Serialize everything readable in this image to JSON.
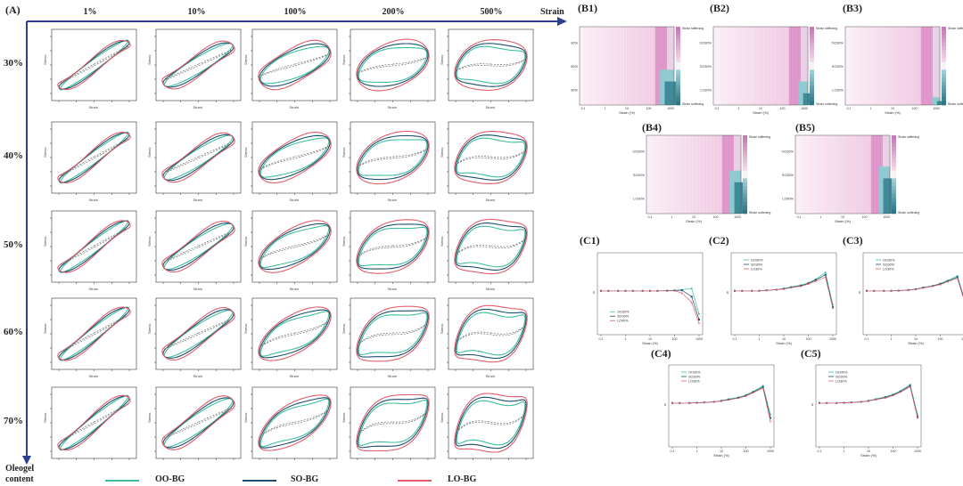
{
  "panelA": {
    "label": "(A)",
    "columns": [
      "1%",
      "10%",
      "100%",
      "200%",
      "500%"
    ],
    "rows": [
      "30%",
      "40%",
      "50%",
      "60%",
      "70%"
    ],
    "x_axis_arrow_label": "Strain",
    "y_axis_arrow_label_line1": "Oleogel",
    "y_axis_arrow_label_line2": "content",
    "subplot_xlabel": "Strain",
    "subplot_ylabel": "Stress",
    "legend": [
      {
        "name": "OO-BG",
        "color": "#3dbf9f"
      },
      {
        "name": "SO-BG",
        "color": "#1f4e6b"
      },
      {
        "name": "LO-BG",
        "color": "#e35d6a"
      }
    ]
  },
  "panelB": {
    "labels": [
      "(B1)",
      "(B2)",
      "(B3)",
      "(B4)",
      "(B5)"
    ],
    "row_labels": [
      "OO30%",
      "SO30%",
      "LO30%"
    ],
    "xlabel": "Strain (%)",
    "colorbar_top": "Strain stiffening",
    "colorbar_bottom": "Strain softening",
    "ticks": [
      "0.1",
      "1",
      "10",
      "100",
      "1000"
    ]
  },
  "panelC": {
    "labels": [
      "(C1)",
      "(C2)",
      "(C3)",
      "(C4)",
      "(C5)"
    ],
    "xlabel": "Strain (%)",
    "ylabel": "S",
    "legend": [
      "OO30%",
      "SO30%",
      "LO30%"
    ],
    "ticks": [
      "0.1",
      "1",
      "10",
      "100",
      "1000"
    ]
  },
  "chart_data": [
    {
      "type": "line",
      "title": "(C1)",
      "xlabel": "Strain (%)",
      "ylabel": "S",
      "x": [
        0.1,
        0.2,
        0.5,
        1,
        2,
        5,
        10,
        20,
        50,
        100,
        200,
        500,
        1000
      ],
      "series": [
        {
          "name": "OO30%",
          "values": [
            0,
            0,
            0,
            0,
            0,
            0,
            0,
            0,
            0.02,
            0.05,
            0.1,
            0.2,
            -2.0
          ]
        },
        {
          "name": "SO30%",
          "values": [
            0,
            0,
            0,
            0,
            0,
            0,
            0,
            0,
            0.01,
            0.03,
            0.05,
            -0.5,
            -2.5
          ]
        },
        {
          "name": "LO30%",
          "values": [
            0,
            0,
            0,
            0,
            0,
            0,
            0,
            0,
            0.0,
            0.02,
            -0.2,
            -1.0,
            -2.8
          ]
        }
      ]
    },
    {
      "type": "line",
      "title": "(C2)",
      "xlabel": "Strain (%)",
      "ylabel": "S",
      "x": [
        0.1,
        0.2,
        0.5,
        1,
        2,
        5,
        10,
        20,
        50,
        100,
        200,
        500,
        1000
      ],
      "series": [
        {
          "name": "OO30%",
          "values": [
            0,
            0,
            0,
            0,
            0.05,
            0.1,
            0.2,
            0.35,
            0.5,
            0.7,
            1.0,
            1.6,
            -1.2
          ]
        },
        {
          "name": "SO30%",
          "values": [
            0,
            0,
            0,
            0,
            0.05,
            0.1,
            0.18,
            0.3,
            0.45,
            0.65,
            0.95,
            1.4,
            -1.4
          ]
        },
        {
          "name": "LO30%",
          "values": [
            0,
            0,
            0,
            0,
            0.05,
            0.1,
            0.15,
            0.28,
            0.4,
            0.6,
            0.85,
            1.2,
            -1.5
          ]
        }
      ]
    },
    {
      "type": "line",
      "title": "(C3)",
      "xlabel": "Strain (%)",
      "ylabel": "S",
      "x": [
        0.1,
        0.2,
        0.5,
        1,
        2,
        5,
        10,
        20,
        50,
        100,
        200,
        500,
        1000
      ],
      "series": [
        {
          "name": "OO30%",
          "values": [
            0,
            0,
            0,
            0,
            0.02,
            0.08,
            0.15,
            0.3,
            0.45,
            0.65,
            0.9,
            1.3,
            -0.8
          ]
        },
        {
          "name": "SO30%",
          "values": [
            0,
            0,
            0,
            0,
            0.02,
            0.07,
            0.14,
            0.28,
            0.42,
            0.6,
            0.85,
            1.2,
            -0.9
          ]
        },
        {
          "name": "LO30%",
          "values": [
            0,
            0,
            0,
            0,
            0.02,
            0.06,
            0.12,
            0.25,
            0.4,
            0.55,
            0.8,
            1.1,
            -1.0
          ]
        }
      ]
    },
    {
      "type": "line",
      "title": "(C4)",
      "xlabel": "Strain (%)",
      "ylabel": "S",
      "x": [
        0.1,
        0.2,
        0.5,
        1,
        2,
        5,
        10,
        20,
        50,
        100,
        200,
        500,
        1000
      ],
      "series": [
        {
          "name": "OO30%",
          "values": [
            0,
            0,
            0,
            0.02,
            0.05,
            0.1,
            0.2,
            0.35,
            0.5,
            0.7,
            1.0,
            1.5,
            -1.0
          ]
        },
        {
          "name": "SO30%",
          "values": [
            0,
            0,
            0,
            0.02,
            0.05,
            0.1,
            0.18,
            0.3,
            0.45,
            0.65,
            0.95,
            1.4,
            -1.3
          ]
        },
        {
          "name": "LO30%",
          "values": [
            0,
            0,
            0,
            0.02,
            0.05,
            0.09,
            0.16,
            0.28,
            0.42,
            0.6,
            0.9,
            1.3,
            -1.6
          ]
        }
      ]
    },
    {
      "type": "line",
      "title": "(C5)",
      "xlabel": "Strain (%)",
      "ylabel": "S",
      "x": [
        0.1,
        0.2,
        0.5,
        1,
        2,
        5,
        10,
        20,
        50,
        100,
        200,
        500,
        1000
      ],
      "series": [
        {
          "name": "OO30%",
          "values": [
            0,
            0,
            0,
            0.02,
            0.05,
            0.1,
            0.2,
            0.35,
            0.55,
            0.75,
            1.05,
            1.6,
            -1.0
          ]
        },
        {
          "name": "SO30%",
          "values": [
            0,
            0,
            0,
            0.02,
            0.05,
            0.1,
            0.18,
            0.32,
            0.5,
            0.7,
            1.0,
            1.5,
            -1.2
          ]
        },
        {
          "name": "LO30%",
          "values": [
            0,
            0,
            0,
            0.02,
            0.04,
            0.09,
            0.16,
            0.3,
            0.45,
            0.65,
            0.95,
            1.4,
            -1.3
          ]
        }
      ]
    }
  ]
}
